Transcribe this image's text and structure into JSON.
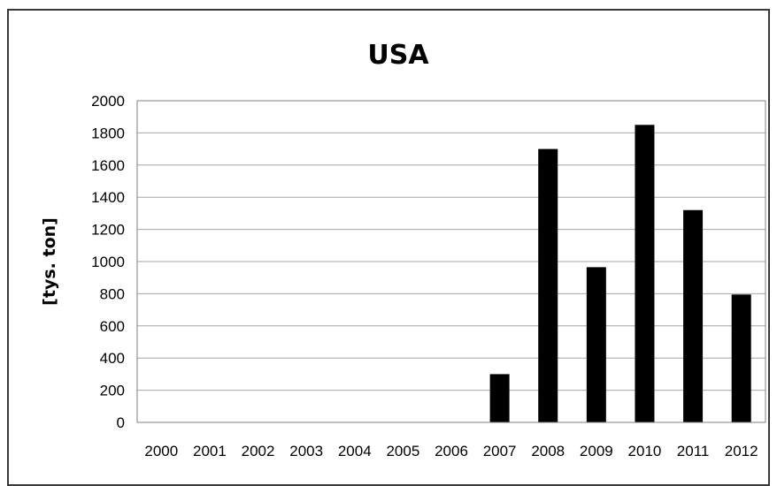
{
  "chart_data": {
    "type": "bar",
    "title": "USA",
    "xlabel": "",
    "ylabel": "[tys. ton]",
    "categories": [
      "2000",
      "2001",
      "2002",
      "2003",
      "2004",
      "2005",
      "2006",
      "2007",
      "2008",
      "2009",
      "2010",
      "2011",
      "2012"
    ],
    "values": [
      0,
      0,
      0,
      0,
      0,
      0,
      0,
      300,
      1700,
      965,
      1850,
      1320,
      795
    ],
    "ylim": [
      0,
      2000
    ],
    "yticks": [
      0,
      200,
      400,
      600,
      800,
      1000,
      1200,
      1400,
      1600,
      1800,
      2000
    ],
    "grid": true,
    "legend": "none",
    "bar_color": "#000000",
    "grid_color": "#a6a6a6"
  }
}
